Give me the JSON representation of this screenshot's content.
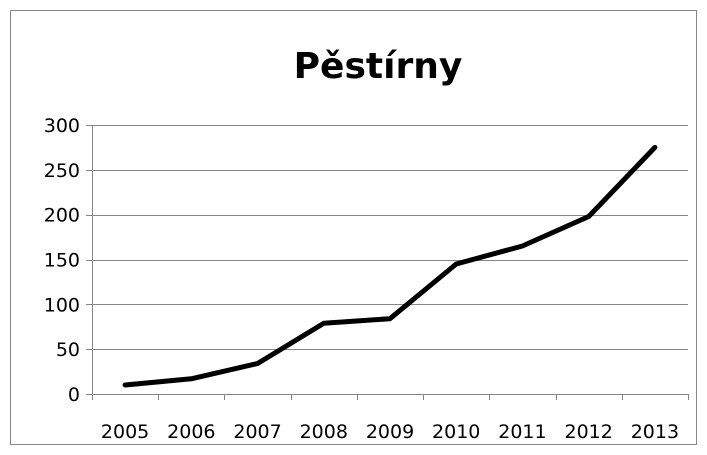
{
  "chart_data": {
    "type": "line",
    "title": "Pěstírny",
    "xlabel": "",
    "ylabel": "",
    "categories": [
      "2005",
      "2006",
      "2007",
      "2008",
      "2009",
      "2010",
      "2011",
      "2012",
      "2013"
    ],
    "series": [
      {
        "values": [
          10,
          17,
          34,
          79,
          84,
          145,
          165,
          198,
          275
        ]
      }
    ],
    "ylim": [
      0,
      300
    ],
    "y_ticks": [
      "0",
      "50",
      "100",
      "150",
      "200",
      "250",
      "300"
    ],
    "grid": true,
    "legend": "none",
    "colors": {
      "line": "#000000",
      "grid": "#868686",
      "axis": "#868686",
      "frame": "#868686"
    }
  }
}
